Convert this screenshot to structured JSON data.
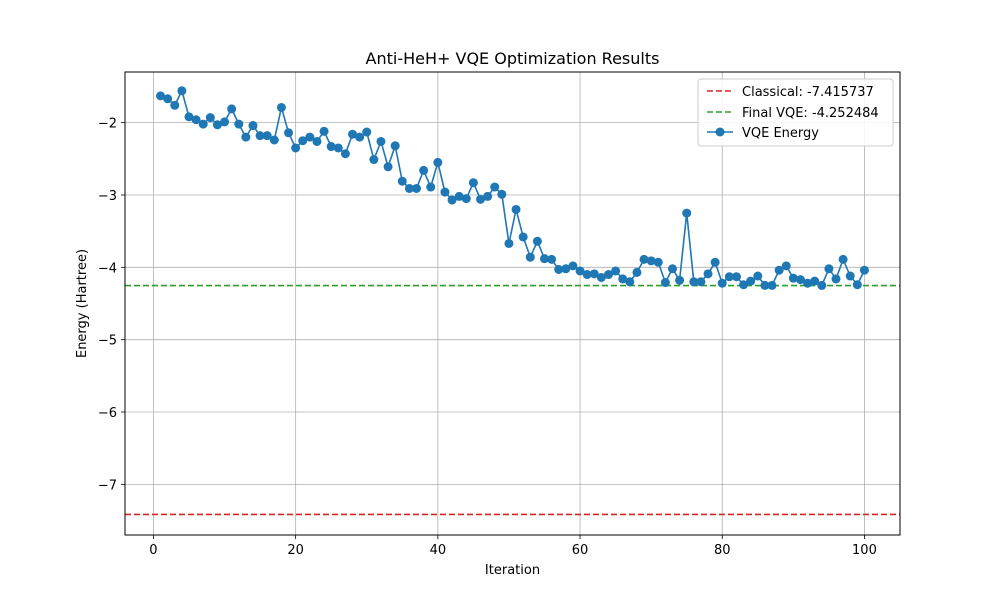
{
  "chart_data": {
    "type": "line",
    "title": "Anti-HeH+ VQE Optimization Results",
    "xlabel": "Iteration",
    "ylabel": "Energy (Hartree)",
    "xlim": [
      -4,
      105
    ],
    "ylim": [
      -7.7,
      -1.3
    ],
    "xticks": [
      0,
      20,
      40,
      60,
      80,
      100
    ],
    "yticks": [
      -7,
      -6,
      -5,
      -4,
      -3,
      -2
    ],
    "grid": true,
    "legend_position": "top-right",
    "reference_lines": [
      {
        "name": "Classical: -7.415737",
        "y": -7.415737,
        "color": "#d62728",
        "style": "dashed"
      },
      {
        "name": "Final VQE: -4.252484",
        "y": -4.252484,
        "color": "#2ca02c",
        "style": "dashed"
      }
    ],
    "series": [
      {
        "name": "VQE Energy",
        "color": "#1f77b4",
        "marker": "circle",
        "x": [
          1,
          2,
          3,
          4,
          5,
          6,
          7,
          8,
          9,
          10,
          11,
          12,
          13,
          14,
          15,
          16,
          17,
          18,
          19,
          20,
          21,
          22,
          23,
          24,
          25,
          26,
          27,
          28,
          29,
          30,
          31,
          32,
          33,
          34,
          35,
          36,
          37,
          38,
          39,
          40,
          41,
          42,
          43,
          44,
          45,
          46,
          47,
          48,
          49,
          50,
          51,
          52,
          53,
          54,
          55,
          56,
          57,
          58,
          59,
          60,
          61,
          62,
          63,
          64,
          65,
          66,
          67,
          68,
          69,
          70,
          71,
          72,
          73,
          74,
          75,
          76,
          77,
          78,
          79,
          80,
          81,
          82,
          83,
          84,
          85,
          86,
          87,
          88,
          89,
          90,
          91,
          92,
          93,
          94,
          95,
          96,
          97,
          98,
          99,
          100
        ],
        "values": [
          -1.63,
          -1.67,
          -1.76,
          -1.56,
          -1.92,
          -1.96,
          -2.02,
          -1.93,
          -2.03,
          -1.99,
          -1.81,
          -2.02,
          -2.2,
          -2.04,
          -2.18,
          -2.18,
          -2.24,
          -1.79,
          -2.14,
          -2.35,
          -2.25,
          -2.2,
          -2.26,
          -2.12,
          -2.33,
          -2.35,
          -2.43,
          -2.16,
          -2.2,
          -2.13,
          -2.51,
          -2.26,
          -2.61,
          -2.32,
          -2.81,
          -2.91,
          -2.91,
          -2.66,
          -2.89,
          -2.55,
          -2.96,
          -3.07,
          -3.02,
          -3.05,
          -2.83,
          -3.06,
          -3.02,
          -2.89,
          -2.99,
          -3.67,
          -3.2,
          -3.58,
          -3.86,
          -3.64,
          -3.88,
          -3.89,
          -4.03,
          -4.02,
          -3.98,
          -4.05,
          -4.1,
          -4.09,
          -4.14,
          -4.1,
          -4.05,
          -4.16,
          -4.2,
          -4.07,
          -3.89,
          -3.91,
          -3.93,
          -4.21,
          -4.02,
          -4.18,
          -3.25,
          -4.2,
          -4.2,
          -4.09,
          -3.93,
          -4.22,
          -4.13,
          -4.13,
          -4.24,
          -4.19,
          -4.12,
          -4.25,
          -4.25,
          -4.04,
          -3.98,
          -4.15,
          -4.17,
          -4.22,
          -4.19,
          -4.25,
          -4.02,
          -4.16,
          -3.89,
          -4.12,
          -4.24,
          -4.04
        ]
      }
    ]
  }
}
